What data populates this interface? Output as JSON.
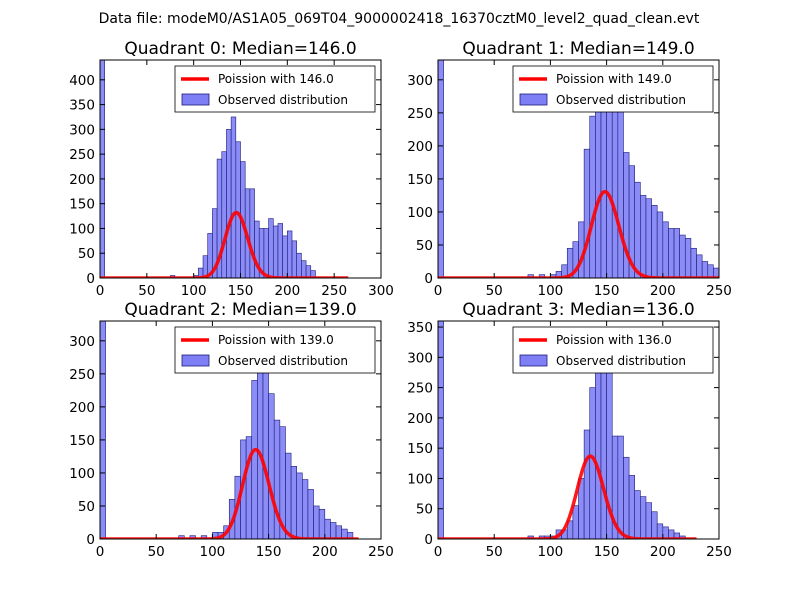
{
  "chart_data": {
    "suptitle": "Data file: modeM0/AS1A05_069T04_9000002418_16370cztM0_level2_quad_clean.evt",
    "panels": [
      {
        "type": "bar",
        "title": "Quadrant 0: Median=146.0",
        "xlim": [
          0,
          300
        ],
        "ylim": [
          0,
          440
        ],
        "xticks": [
          0,
          50,
          100,
          150,
          200,
          250,
          300
        ],
        "yticks": [
          0,
          50,
          100,
          150,
          200,
          250,
          300,
          350,
          400
        ],
        "bin_width": 5,
        "histogram": [
          [
            0,
            440
          ],
          [
            75,
            5
          ],
          [
            100,
            5
          ],
          [
            105,
            20
          ],
          [
            110,
            45
          ],
          [
            115,
            90
          ],
          [
            120,
            140
          ],
          [
            125,
            240
          ],
          [
            130,
            255
          ],
          [
            135,
            300
          ],
          [
            140,
            325
          ],
          [
            145,
            275
          ],
          [
            150,
            235
          ],
          [
            155,
            180
          ],
          [
            160,
            180
          ],
          [
            165,
            115
          ],
          [
            170,
            100
          ],
          [
            175,
            100
          ],
          [
            180,
            120
          ],
          [
            185,
            105
          ],
          [
            190,
            110
          ],
          [
            195,
            85
          ],
          [
            200,
            95
          ],
          [
            205,
            75
          ],
          [
            210,
            50
          ],
          [
            215,
            35
          ],
          [
            220,
            25
          ],
          [
            225,
            15
          ]
        ],
        "poisson": {
          "mean": 146,
          "scale": 4000,
          "xmax": 265
        },
        "legend": {
          "line_label": "Poission with 146.0",
          "patch_label": "Observed distribution"
        }
      },
      {
        "type": "bar",
        "title": "Quadrant 1: Median=149.0",
        "xlim": [
          0,
          250
        ],
        "ylim": [
          0,
          330
        ],
        "xticks": [
          0,
          50,
          100,
          150,
          200,
          250
        ],
        "yticks": [
          0,
          50,
          100,
          150,
          200,
          250,
          300
        ],
        "bin_width": 5,
        "histogram": [
          [
            0,
            330
          ],
          [
            80,
            5
          ],
          [
            90,
            5
          ],
          [
            100,
            5
          ],
          [
            105,
            10
          ],
          [
            110,
            20
          ],
          [
            115,
            45
          ],
          [
            120,
            55
          ],
          [
            125,
            85
          ],
          [
            130,
            195
          ],
          [
            135,
            245
          ],
          [
            140,
            260
          ],
          [
            145,
            290
          ],
          [
            150,
            320
          ],
          [
            155,
            300
          ],
          [
            160,
            270
          ],
          [
            165,
            190
          ],
          [
            170,
            170
          ],
          [
            175,
            145
          ],
          [
            180,
            125
          ],
          [
            185,
            120
          ],
          [
            190,
            110
          ],
          [
            195,
            100
          ],
          [
            200,
            85
          ],
          [
            205,
            75
          ],
          [
            210,
            75
          ],
          [
            215,
            65
          ],
          [
            220,
            60
          ],
          [
            225,
            45
          ],
          [
            230,
            35
          ],
          [
            235,
            25
          ],
          [
            240,
            20
          ],
          [
            245,
            15
          ]
        ],
        "poisson": {
          "mean": 149,
          "scale": 4000,
          "xmax": 250
        },
        "legend": {
          "line_label": "Poission with 149.0",
          "patch_label": "Observed distribution"
        }
      },
      {
        "type": "bar",
        "title": "Quadrant 2: Median=139.0",
        "xlim": [
          0,
          250
        ],
        "ylim": [
          0,
          330
        ],
        "xticks": [
          0,
          50,
          100,
          150,
          200,
          250
        ],
        "yticks": [
          0,
          50,
          100,
          150,
          200,
          250,
          300
        ],
        "bin_width": 5,
        "histogram": [
          [
            0,
            330
          ],
          [
            70,
            5
          ],
          [
            80,
            5
          ],
          [
            90,
            5
          ],
          [
            100,
            10
          ],
          [
            105,
            10
          ],
          [
            110,
            20
          ],
          [
            115,
            60
          ],
          [
            120,
            95
          ],
          [
            125,
            150
          ],
          [
            130,
            155
          ],
          [
            135,
            240
          ],
          [
            140,
            320
          ],
          [
            145,
            270
          ],
          [
            150,
            220
          ],
          [
            155,
            180
          ],
          [
            160,
            170
          ],
          [
            165,
            130
          ],
          [
            170,
            110
          ],
          [
            175,
            100
          ],
          [
            180,
            90
          ],
          [
            185,
            75
          ],
          [
            190,
            50
          ],
          [
            195,
            45
          ],
          [
            200,
            30
          ],
          [
            205,
            25
          ],
          [
            210,
            20
          ],
          [
            215,
            15
          ],
          [
            220,
            10
          ]
        ],
        "poisson": {
          "mean": 139,
          "scale": 4000,
          "xmax": 230
        },
        "legend": {
          "line_label": "Poission with 139.0",
          "patch_label": "Observed distribution"
        }
      },
      {
        "type": "bar",
        "title": "Quadrant 3: Median=136.0",
        "xlim": [
          0,
          250
        ],
        "ylim": [
          0,
          360
        ],
        "xticks": [
          0,
          50,
          100,
          150,
          200,
          250
        ],
        "yticks": [
          0,
          50,
          100,
          150,
          200,
          250,
          300,
          350
        ],
        "bin_width": 5,
        "histogram": [
          [
            0,
            360
          ],
          [
            80,
            5
          ],
          [
            90,
            5
          ],
          [
            95,
            5
          ],
          [
            100,
            5
          ],
          [
            105,
            15
          ],
          [
            110,
            15
          ],
          [
            115,
            30
          ],
          [
            120,
            55
          ],
          [
            125,
            100
          ],
          [
            130,
            180
          ],
          [
            135,
            250
          ],
          [
            140,
            340
          ],
          [
            145,
            320
          ],
          [
            150,
            330
          ],
          [
            155,
            170
          ],
          [
            160,
            170
          ],
          [
            165,
            135
          ],
          [
            170,
            105
          ],
          [
            175,
            80
          ],
          [
            180,
            70
          ],
          [
            185,
            60
          ],
          [
            190,
            45
          ],
          [
            195,
            25
          ],
          [
            200,
            20
          ],
          [
            205,
            15
          ],
          [
            210,
            10
          ],
          [
            215,
            5
          ]
        ],
        "poisson": {
          "mean": 136,
          "scale": 4000,
          "xmax": 230
        },
        "legend": {
          "line_label": "Poission with 136.0",
          "patch_label": "Observed distribution"
        }
      }
    ]
  },
  "colors": {
    "bar_fill": "#7f7ff5",
    "bar_edge": "#1c1c7a",
    "line": "#ff0000",
    "axis": "#000000"
  }
}
